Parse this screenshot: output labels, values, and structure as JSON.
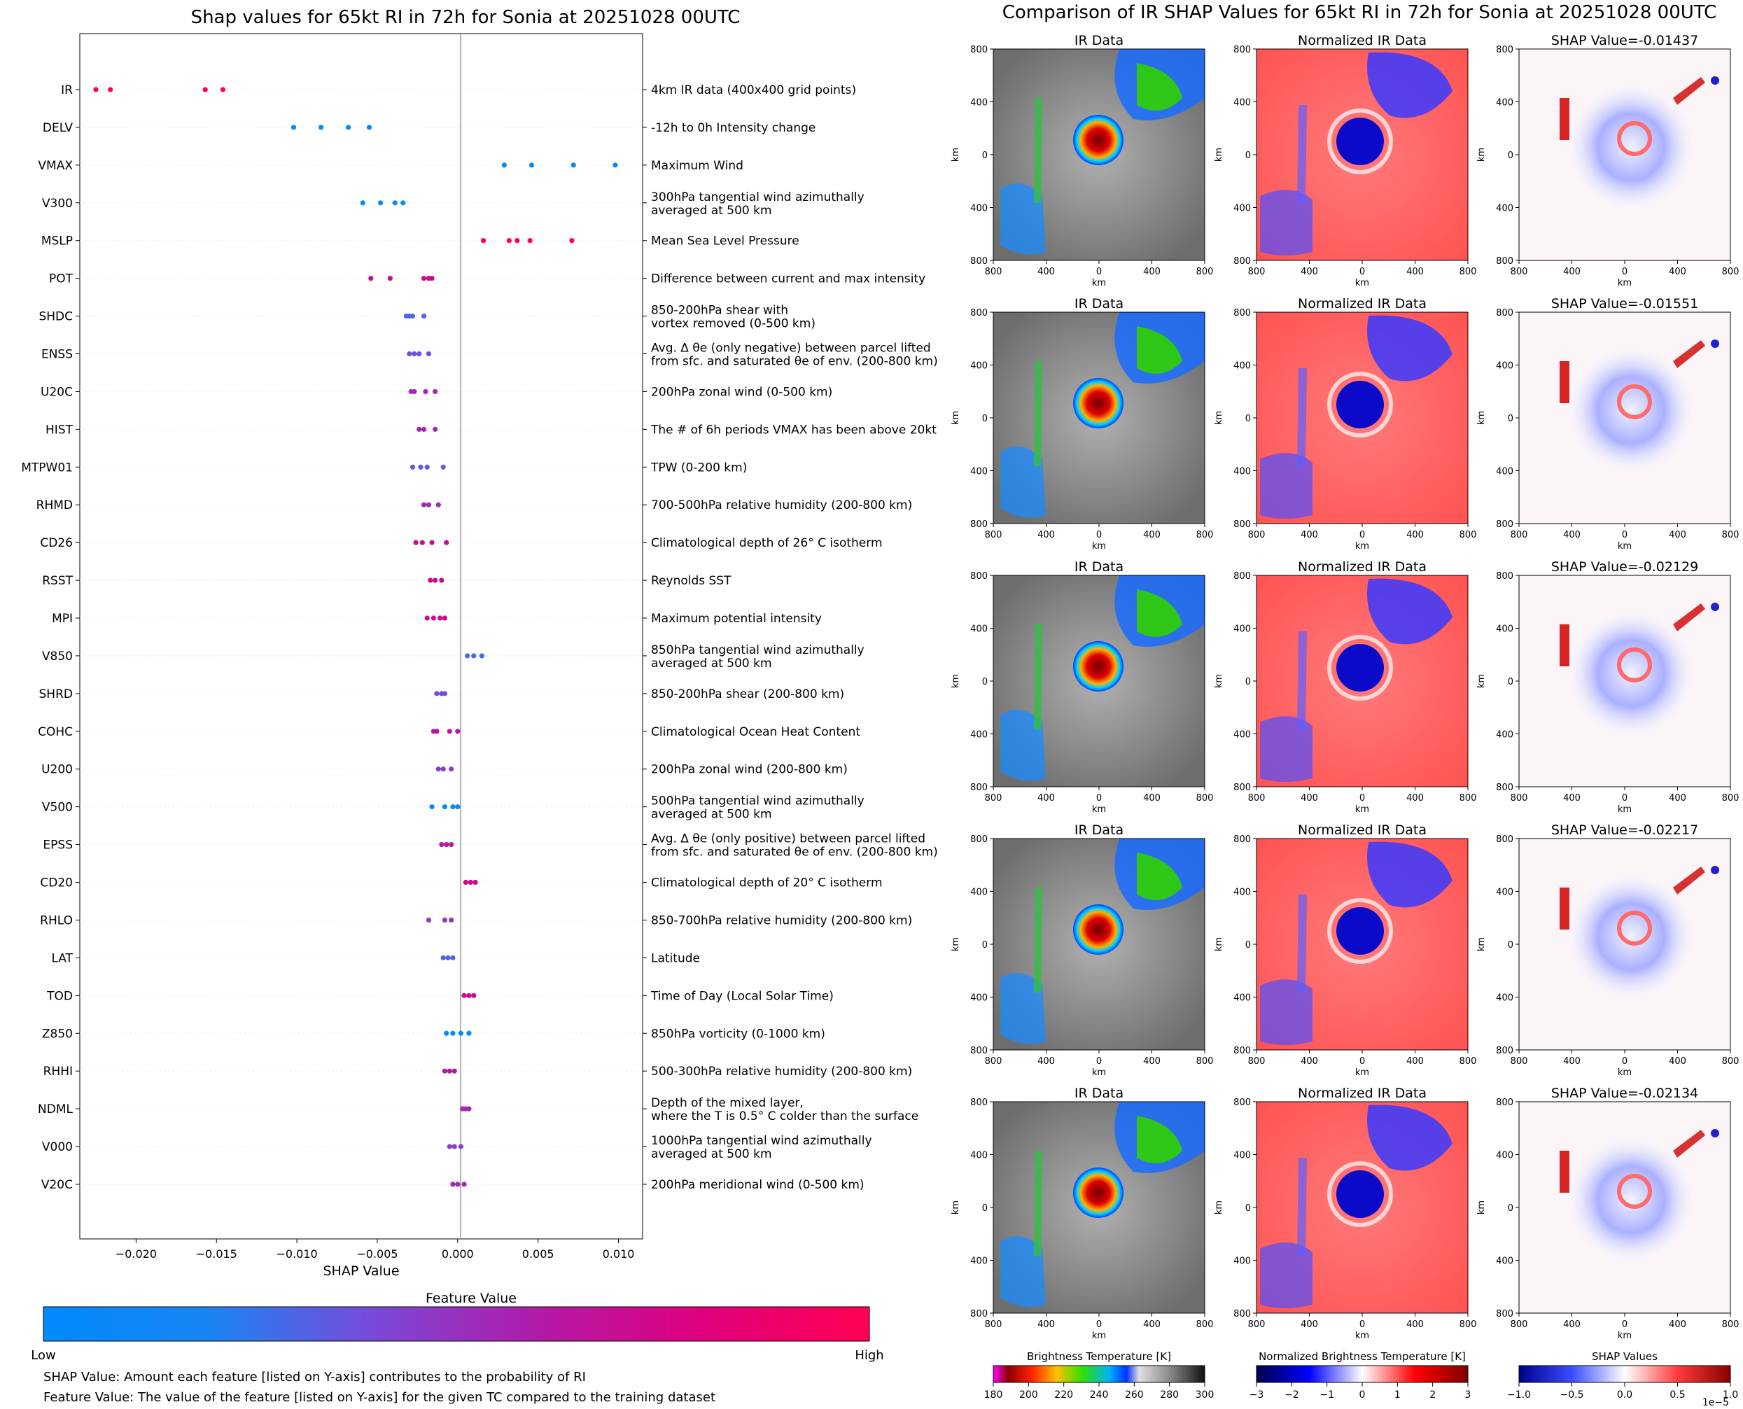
{
  "left_title": "Shap values for 65kt RI in 72h for Sonia at 20251028 00UTC",
  "right_title": "Comparison of IR SHAP Values for 65kt RI in 72h for Sonia at 20251028 00UTC",
  "beeswarm": {
    "xlabel": "SHAP Value",
    "x_ticks": [
      "−0.020",
      "−0.015",
      "−0.010",
      "−0.005",
      "0.000",
      "0.005",
      "0.010"
    ],
    "colorbar_title": "Feature Value",
    "colorbar_low": "Low",
    "colorbar_high": "High",
    "note1": "SHAP Value: Amount each feature [listed on Y-axis] contributes to the probability of RI",
    "note2": "Feature Value: The value of the feature [listed on Y-axis] for the given TC compared to the training dataset"
  },
  "panels": {
    "col_titles": [
      "IR Data",
      "Normalized IR Data"
    ],
    "shap_titles": [
      "SHAP Value=-0.01437",
      "SHAP Value=-0.01551",
      "SHAP Value=-0.02129",
      "SHAP Value=-0.02217",
      "SHAP Value=-0.02134"
    ],
    "axis_ticks": [
      "800",
      "400",
      "0",
      "400",
      "800"
    ],
    "axis_label": "km"
  },
  "colorbars": {
    "bt_label": "Brightness Temperature [K]",
    "bt_ticks": [
      "180",
      "200",
      "220",
      "240",
      "260",
      "280",
      "300"
    ],
    "norm_label": "Normalized Brightness Temperature [K]",
    "norm_ticks": [
      "−3",
      "−2",
      "−1",
      "0",
      "1",
      "2",
      "3"
    ],
    "shap_label": "SHAP Values",
    "shap_ticks": [
      "−1.0",
      "−0.5",
      "0.0",
      "0.5",
      "1.0"
    ],
    "shap_exponent": "1e−5"
  },
  "colors": {
    "low": "#008afb",
    "high": "#ff0052"
  },
  "chart_data": {
    "type": "scatter",
    "title": "Shap values for 65kt RI in 72h for Sonia at 20251028 00UTC",
    "xlabel": "SHAP Value",
    "xlim": [
      -0.0235,
      0.0115
    ],
    "features": [
      {
        "name": "IR",
        "desc": [
          "4km IR data (400x400 grid points)"
        ],
        "shap": [
          -0.0225,
          -0.0216,
          -0.0157,
          -0.0146
        ],
        "fv": 1.0
      },
      {
        "name": "DELV",
        "desc": [
          "-12h to 0h Intensity change"
        ],
        "shap": [
          -0.0102,
          -0.0085,
          -0.0068,
          -0.0055
        ],
        "fv": 0.0
      },
      {
        "name": "VMAX",
        "desc": [
          "Maximum Wind"
        ],
        "shap": [
          0.0029,
          0.0046,
          0.0072,
          0.0098
        ],
        "fv": 0.0
      },
      {
        "name": "V300",
        "desc": [
          "300hPa tangential wind azimuthally",
          "averaged at 500 km"
        ],
        "shap": [
          -0.0059,
          -0.0048,
          -0.0039,
          -0.0034
        ],
        "fv": 0.05
      },
      {
        "name": "MSLP",
        "desc": [
          "Mean Sea Level Pressure"
        ],
        "shap": [
          0.0016,
          0.0032,
          0.0037,
          0.0045,
          0.0071
        ],
        "fv": 1.0
      },
      {
        "name": "POT",
        "desc": [
          "Difference between current and max intensity"
        ],
        "shap": [
          -0.0054,
          -0.0042,
          -0.0021,
          -0.0018,
          -0.0016
        ],
        "fv": 0.7
      },
      {
        "name": "SHDC",
        "desc": [
          "850-200hPa shear with",
          "vortex removed (0-500 km)"
        ],
        "shap": [
          -0.0032,
          -0.003,
          -0.0028,
          -0.0021
        ],
        "fv": 0.3
      },
      {
        "name": "ENSS",
        "desc": [
          "Avg. Δ θe (only negative) between parcel lifted",
          "from sfc. and saturated θe of env. (200-800 km)"
        ],
        "shap": [
          -0.003,
          -0.0027,
          -0.0024,
          -0.0018
        ],
        "fv": 0.38
      },
      {
        "name": "U20C",
        "desc": [
          "200hPa zonal wind (0-500 km)"
        ],
        "shap": [
          -0.0029,
          -0.0027,
          -0.002,
          -0.0014
        ],
        "fv": 0.55
      },
      {
        "name": "HIST",
        "desc": [
          "The # of 6h periods VMAX has been above 20kt"
        ],
        "shap": [
          -0.0024,
          -0.0021,
          -0.0014
        ],
        "fv": 0.55
      },
      {
        "name": "MTPW01",
        "desc": [
          "TPW (0-200 km)"
        ],
        "shap": [
          -0.0028,
          -0.0023,
          -0.0019,
          -0.0009
        ],
        "fv": 0.35
      },
      {
        "name": "RHMD",
        "desc": [
          "700-500hPa relative humidity (200-800 km)"
        ],
        "shap": [
          -0.0021,
          -0.0018,
          -0.0012
        ],
        "fv": 0.55
      },
      {
        "name": "CD26",
        "desc": [
          "Climatological depth of 26° C isotherm"
        ],
        "shap": [
          -0.0026,
          -0.0022,
          -0.0016,
          -0.0007
        ],
        "fv": 0.7
      },
      {
        "name": "RSST",
        "desc": [
          "Reynolds SST"
        ],
        "shap": [
          -0.0017,
          -0.0014,
          -0.001
        ],
        "fv": 0.72
      },
      {
        "name": "MPI",
        "desc": [
          "Maximum potential intensity"
        ],
        "shap": [
          -0.0019,
          -0.0015,
          -0.0011,
          -0.0008
        ],
        "fv": 0.72
      },
      {
        "name": "V850",
        "desc": [
          "850hPa tangential wind azimuthally",
          "averaged at 500 km"
        ],
        "shap": [
          0.0006,
          0.001,
          0.0015
        ],
        "fv": 0.3
      },
      {
        "name": "SHRD",
        "desc": [
          "850-200hPa shear (200-800 km)"
        ],
        "shap": [
          -0.0013,
          -0.001,
          -0.0008
        ],
        "fv": 0.4
      },
      {
        "name": "COHC",
        "desc": [
          "Climatological Ocean Heat Content"
        ],
        "shap": [
          -0.0015,
          -0.0013,
          -0.0005,
          0.0
        ],
        "fv": 0.62
      },
      {
        "name": "U200",
        "desc": [
          "200hPa zonal wind (200-800 km)"
        ],
        "shap": [
          -0.0012,
          -0.0009,
          -0.0004
        ],
        "fv": 0.45
      },
      {
        "name": "V500",
        "desc": [
          "500hPa tangential wind azimuthally",
          "averaged at 500 km"
        ],
        "shap": [
          -0.0016,
          -0.0008,
          -0.0003,
          0.0
        ],
        "fv": 0.05
      },
      {
        "name": "EPSS",
        "desc": [
          "Avg. Δ θe (only positive) between parcel lifted",
          "from sfc. and saturated θe of env. (200-800 km)"
        ],
        "shap": [
          -0.001,
          -0.0007,
          -0.0004
        ],
        "fv": 0.6
      },
      {
        "name": "CD20",
        "desc": [
          "Climatological depth of 20° C isotherm"
        ],
        "shap": [
          0.0005,
          0.0008,
          0.0011
        ],
        "fv": 0.75
      },
      {
        "name": "RHLO",
        "desc": [
          "850-700hPa relative humidity (200-800 km)"
        ],
        "shap": [
          -0.0018,
          -0.0008,
          -0.0004
        ],
        "fv": 0.5
      },
      {
        "name": "LAT",
        "desc": [
          "Latitude"
        ],
        "shap": [
          -0.0009,
          -0.0006,
          -0.0003
        ],
        "fv": 0.3
      },
      {
        "name": "TOD",
        "desc": [
          "Time of Day (Local Solar Time)"
        ],
        "shap": [
          0.0004,
          0.0007,
          0.001
        ],
        "fv": 0.72
      },
      {
        "name": "Z850",
        "desc": [
          "850hPa vorticity (0-1000 km)"
        ],
        "shap": [
          -0.0007,
          -0.0003,
          0.0002,
          0.0007
        ],
        "fv": 0.05
      },
      {
        "name": "RHHI",
        "desc": [
          "500-300hPa relative humidity (200-800 km)"
        ],
        "shap": [
          -0.0008,
          -0.0005,
          -0.0002
        ],
        "fv": 0.62
      },
      {
        "name": "NDML",
        "desc": [
          "Depth of the mixed layer,",
          "where the T is 0.5° C colder than the surface"
        ],
        "shap": [
          0.0003,
          0.0005,
          0.0007
        ],
        "fv": 0.55
      },
      {
        "name": "V000",
        "desc": [
          "1000hPa tangential wind azimuthally",
          "averaged at 500 km"
        ],
        "shap": [
          -0.0005,
          -0.0002,
          0.0002
        ],
        "fv": 0.45
      },
      {
        "name": "V20C",
        "desc": [
          "200hPa meridional wind (0-500 km)"
        ],
        "shap": [
          -0.0003,
          0.0,
          0.0004
        ],
        "fv": 0.55
      }
    ]
  }
}
